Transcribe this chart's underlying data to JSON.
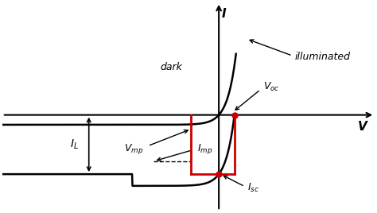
{
  "background_color": "#ffffff",
  "fig_width": 4.74,
  "fig_height": 2.68,
  "dpi": 100,
  "xlim": [
    -2.5,
    1.8
  ],
  "ylim": [
    -1.7,
    2.0
  ],
  "V_oc": 0.18,
  "I_sc": -1.05,
  "V_mp": -0.32,
  "I_mp": -0.82,
  "axis_color": "#000000",
  "curve_color": "#000000",
  "red_color": "#cc0000",
  "dashed_color": "#000000",
  "dot_color": "#cc0000",
  "label_I": "I",
  "label_V": "V",
  "label_dark": "dark",
  "label_illuminated": "illuminated",
  "label_Voc": "$V_{oc}$",
  "label_Vmp": "$V_{mp}$",
  "label_Imp": "$I_{mp}$",
  "label_Isc": "$I_{sc}$",
  "label_IL": "$I_L$"
}
